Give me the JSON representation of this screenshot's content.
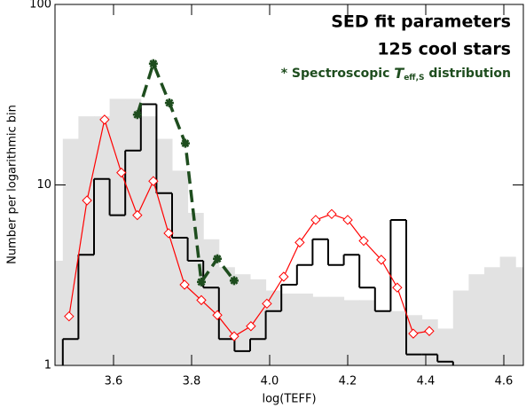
{
  "chart_data": {
    "type": "histogram",
    "title": "SED fit parameters",
    "subtitle": "125 cool stars",
    "annotation": {
      "prefix": "* Spectroscopic ",
      "symbol": "T",
      "subscript": "eff,S",
      "suffix": " distribution",
      "color": "#1e4d1e"
    },
    "x_label": "log(TEFF)",
    "y_label": "Number per logarithmic bin",
    "xlim": [
      3.45,
      4.65
    ],
    "ylim": [
      1,
      100
    ],
    "log_y": true,
    "xticks": [
      3.6,
      3.8,
      {
        "value": 4,
        "label": "4.0"
      },
      4.2,
      4.4,
      4.6
    ],
    "yticks": [
      1,
      10,
      100
    ],
    "series": [
      {
        "type": "histogram",
        "style": "filled",
        "color": "#e2e2e2",
        "bins": [
          3.43,
          3.47,
          3.51,
          3.55,
          3.59,
          3.63,
          3.67,
          3.71,
          3.75,
          3.79,
          3.83,
          3.87,
          3.91,
          3.95,
          3.99,
          4.03,
          4.07,
          4.11,
          4.15,
          4.19,
          4.23,
          4.27,
          4.31,
          4.35,
          4.39,
          4.43,
          4.47,
          4.51,
          4.55,
          4.59,
          4.63,
          4.67
        ],
        "values": [
          3.8,
          18,
          24,
          24,
          30,
          30,
          24,
          18,
          12,
          7,
          5,
          3.5,
          3.2,
          3.0,
          2.6,
          2.5,
          2.5,
          2.4,
          2.4,
          2.3,
          2.3,
          2.0,
          2.0,
          1.9,
          1.8,
          1.6,
          2.6,
          3.2,
          3.5,
          4.0,
          3.5
        ]
      },
      {
        "type": "histogram",
        "style": "step",
        "color": "#000000",
        "bins": [
          3.47,
          3.51,
          3.55,
          3.59,
          3.63,
          3.67,
          3.71,
          3.75,
          3.79,
          3.83,
          3.87,
          3.91,
          3.95,
          3.99,
          4.03,
          4.07,
          4.11,
          4.15,
          4.19,
          4.23,
          4.27,
          4.31,
          4.35,
          4.39,
          4.43,
          4.47
        ],
        "values": [
          1.4,
          4.1,
          10.8,
          6.8,
          15.5,
          28,
          9,
          5.1,
          3.8,
          2.7,
          1.4,
          1.2,
          1.4,
          2.0,
          2.8,
          3.6,
          5.0,
          3.6,
          4.1,
          2.7,
          2.0,
          6.4,
          1.15,
          1.15,
          1.05
        ]
      },
      {
        "type": "line",
        "marker": "diamond",
        "dashed": false,
        "color": "#ff0000",
        "x": [
          3.486,
          3.532,
          3.577,
          3.62,
          3.661,
          3.702,
          3.741,
          3.782,
          3.825,
          3.866,
          3.909,
          3.952,
          3.993,
          4.036,
          4.077,
          4.118,
          4.159,
          4.2,
          4.241,
          4.286,
          4.327,
          4.368,
          4.409
        ],
        "values": [
          1.87,
          8.2,
          23,
          11.7,
          6.8,
          10.5,
          5.4,
          2.8,
          2.3,
          1.9,
          1.45,
          1.65,
          2.2,
          3.1,
          4.8,
          6.4,
          6.9,
          6.4,
          4.9,
          3.85,
          2.7,
          1.5,
          1.55
        ]
      },
      {
        "type": "line",
        "marker": "star",
        "dashed": true,
        "color": "#1e4d1e",
        "x": [
          3.661,
          3.702,
          3.743,
          3.784,
          3.825,
          3.866,
          3.909
        ],
        "values": [
          24.5,
          47,
          28.5,
          17,
          2.9,
          3.9,
          2.95
        ]
      }
    ]
  }
}
